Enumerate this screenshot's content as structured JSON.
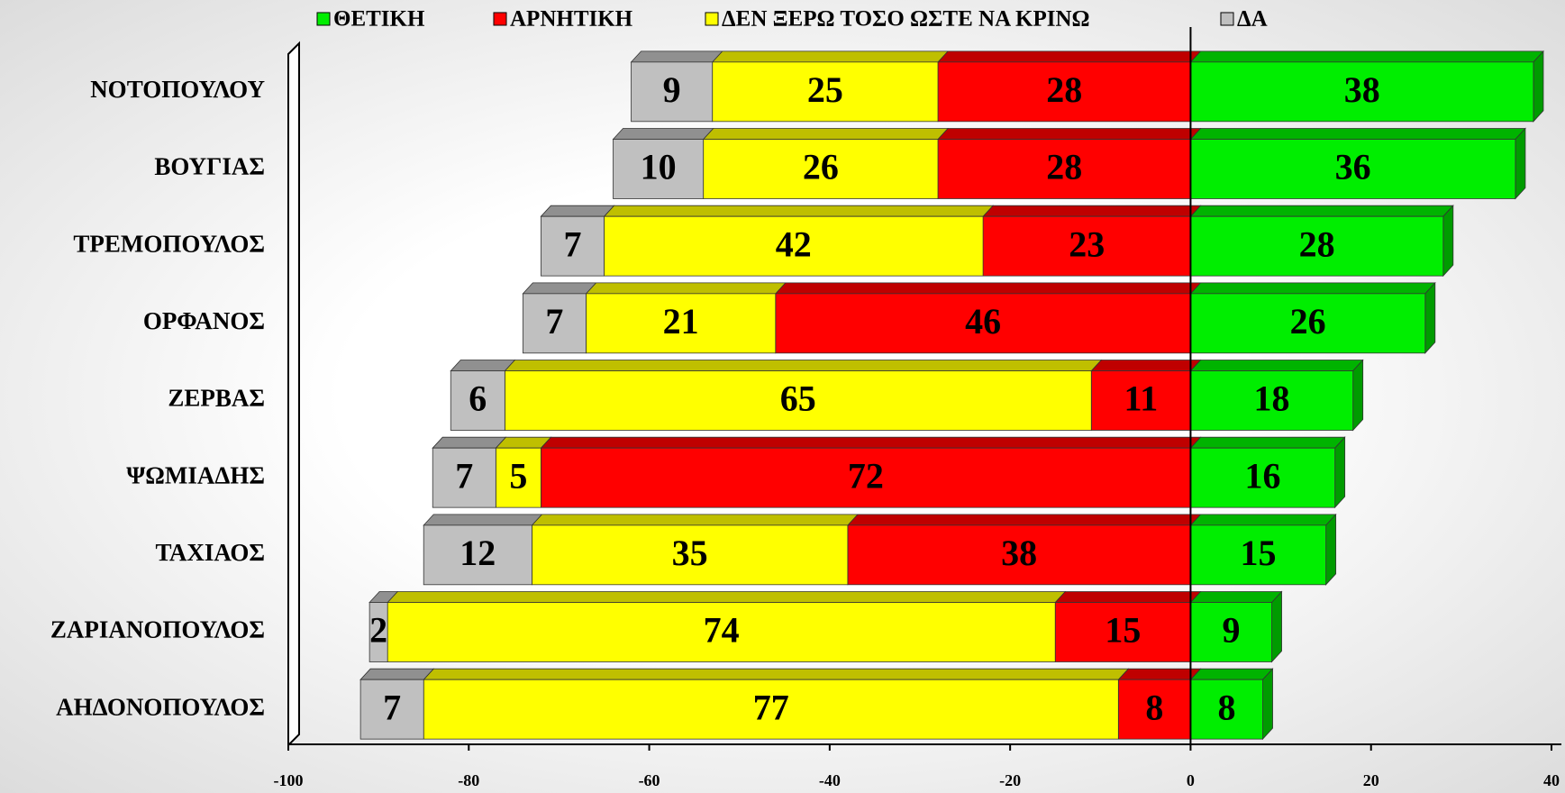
{
  "chart_data": {
    "type": "bar",
    "orientation": "horizontal",
    "stacked": true,
    "categories": [
      "ΝΟΤΟΠΟΥΛΟΥ",
      "ΒΟΥΓΙΑΣ",
      "ΤΡΕΜΟΠΟΥΛΟΣ",
      "ΟΡΦΑΝΟΣ",
      "ΖΕΡΒΑΣ",
      "ΨΩΜΙΑΔΗΣ",
      "ΤΑΧΙΑΟΣ",
      "ΖΑΡΙΑΝΟΠΟΥΛΟΣ",
      "ΑΗΔΟΝΟΠΟΥΛΟΣ"
    ],
    "series": [
      {
        "name": "ΘΕΤΙΚΗ",
        "color": "#00ee00",
        "values": [
          38,
          36,
          28,
          26,
          18,
          16,
          15,
          9,
          8
        ]
      },
      {
        "name": "ΑΡΝΗΤΙΚΗ",
        "color": "#ff0000",
        "values": [
          -28,
          -28,
          -23,
          -46,
          -11,
          -72,
          -38,
          -15,
          -8
        ],
        "value_labels": [
          "28",
          "28",
          "23",
          "46",
          "11",
          "72",
          "38",
          "15",
          "8"
        ]
      },
      {
        "name": "ΔΕΝ ΞΕΡΩ ΤΟΣΟ ΩΣΤΕ ΝΑ ΚΡΙΝΩ",
        "color": "#ffff00",
        "values": [
          -25,
          -26,
          -42,
          -21,
          -65,
          -5,
          -35,
          -74,
          -77
        ],
        "value_labels": [
          "25",
          "26",
          "42",
          "21",
          "65",
          "5",
          "35",
          "74",
          "77"
        ]
      },
      {
        "name": "ΔΑ",
        "color": "#c0c0c0",
        "values": [
          -9,
          -10,
          -7,
          -7,
          -6,
          -7,
          -12,
          -2,
          -7
        ],
        "value_labels": [
          "9",
          "10",
          "7",
          "7",
          "6",
          "7",
          "12",
          "2",
          "7"
        ]
      }
    ],
    "xlim": [
      -100,
      40
    ],
    "xticks": [
      -100,
      -80,
      -60,
      -40,
      -20,
      0,
      20,
      40
    ],
    "legend": "top"
  }
}
